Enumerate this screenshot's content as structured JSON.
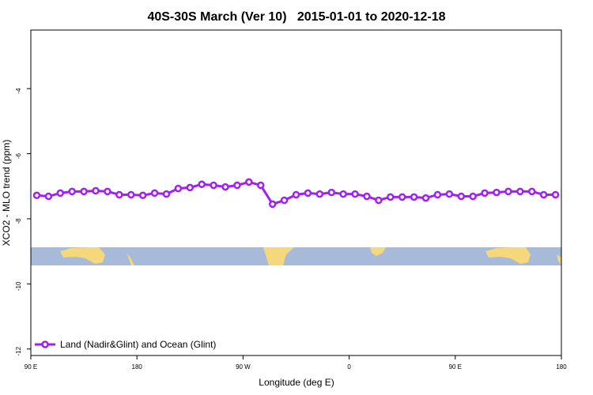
{
  "chart_data": {
    "type": "line",
    "title": "40S-30S March (Ver 10)   2015-01-01 to 2020-12-18",
    "x_label": "Longitude (deg E)",
    "y_label": "XCO2 - MLO trend (ppm)",
    "x": [
      95,
      105,
      115,
      125,
      135,
      145,
      155,
      165,
      175,
      185,
      195,
      205,
      215,
      225,
      235,
      245,
      255,
      265,
      275,
      285,
      295,
      305,
      315,
      325,
      335,
      345,
      355,
      365,
      375,
      385,
      395,
      405,
      415,
      425,
      435,
      445,
      455,
      465,
      475,
      485,
      495,
      505,
      515,
      525,
      535
    ],
    "series": [
      {
        "name": "Land (Nadir&Glint) and Ocean (Glint)",
        "color": "#a020f0",
        "values": [
          -7.28,
          -7.31,
          -7.21,
          -7.16,
          -7.16,
          -7.14,
          -7.16,
          -7.26,
          -7.26,
          -7.28,
          -7.21,
          -7.24,
          -7.07,
          -7.04,
          -6.94,
          -6.97,
          -7.02,
          -6.97,
          -6.87,
          -6.97,
          -7.55,
          -7.43,
          -7.26,
          -7.21,
          -7.24,
          -7.19,
          -7.24,
          -7.24,
          -7.31,
          -7.43,
          -7.33,
          -7.33,
          -7.33,
          -7.36,
          -7.26,
          -7.24,
          -7.31,
          -7.31,
          -7.21,
          -7.19,
          -7.16,
          -7.16,
          -7.16,
          -7.26,
          -7.26
        ]
      }
    ],
    "xlim": [
      90,
      540
    ],
    "ylim": [
      -12.2,
      -2.2
    ],
    "xticks": [
      {
        "value": 90,
        "label": "90 E"
      },
      180,
      {
        "value": 270,
        "label": "90 W"
      },
      {
        "value": 360,
        "label": "0"
      },
      {
        "value": 450,
        "label": "90 E"
      },
      {
        "value": 540,
        "label": "180"
      }
    ],
    "yticks": [
      -4,
      -6,
      -8,
      -10,
      -12
    ],
    "legend": "bottom-left"
  }
}
